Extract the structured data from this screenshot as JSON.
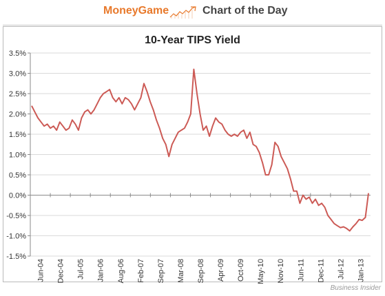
{
  "header": {
    "brand": "MoneyGame",
    "section": "Chart of the Day",
    "accent_color": "#e8792b",
    "sparkline_icon": "rising-line-icon"
  },
  "source": "Business Insider",
  "chart_data": {
    "type": "line",
    "title": "10-Year TIPS Yield",
    "xlabel": "",
    "ylabel": "",
    "x_ticks": [
      "Jun-04",
      "Dec-04",
      "Jul-05",
      "Jan-06",
      "Aug-06",
      "Feb-07",
      "Sep-07",
      "Mar-08",
      "Sep-08",
      "Apr-09",
      "Oct-09",
      "May-10",
      "Nov-10",
      "Jun-11",
      "Dec-11",
      "Jul-12",
      "Jan-13"
    ],
    "y_ticks": [
      "3.5%",
      "3.0%",
      "2.5%",
      "2.0%",
      "1.5%",
      "1.0%",
      "0.5%",
      "0.0%",
      "-0.5%",
      "-1.0%",
      "-1.5%"
    ],
    "ylim": [
      -1.5,
      3.5
    ],
    "grid": "horizontal",
    "line_color": "#cc5a55",
    "x": [
      "2004-06",
      "2004-07",
      "2004-08",
      "2004-09",
      "2004-10",
      "2004-11",
      "2004-12",
      "2005-01",
      "2005-02",
      "2005-03",
      "2005-04",
      "2005-05",
      "2005-06",
      "2005-07",
      "2005-08",
      "2005-09",
      "2005-10",
      "2005-11",
      "2005-12",
      "2006-01",
      "2006-02",
      "2006-03",
      "2006-04",
      "2006-05",
      "2006-06",
      "2006-07",
      "2006-08",
      "2006-09",
      "2006-10",
      "2006-11",
      "2006-12",
      "2007-01",
      "2007-02",
      "2007-03",
      "2007-04",
      "2007-05",
      "2007-06",
      "2007-07",
      "2007-08",
      "2007-09",
      "2007-10",
      "2007-11",
      "2007-12",
      "2008-01",
      "2008-02",
      "2008-03",
      "2008-04",
      "2008-05",
      "2008-06",
      "2008-07",
      "2008-08",
      "2008-09",
      "2008-10",
      "2008-11",
      "2008-12",
      "2009-01",
      "2009-02",
      "2009-03",
      "2009-04",
      "2009-05",
      "2009-06",
      "2009-07",
      "2009-08",
      "2009-09",
      "2009-10",
      "2009-11",
      "2009-12",
      "2010-01",
      "2010-02",
      "2010-03",
      "2010-04",
      "2010-05",
      "2010-06",
      "2010-07",
      "2010-08",
      "2010-09",
      "2010-10",
      "2010-11",
      "2010-12",
      "2011-01",
      "2011-02",
      "2011-03",
      "2011-04",
      "2011-05",
      "2011-06",
      "2011-07",
      "2011-08",
      "2011-09",
      "2011-10",
      "2011-11",
      "2011-12",
      "2012-01",
      "2012-02",
      "2012-03",
      "2012-04",
      "2012-05",
      "2012-06",
      "2012-07",
      "2012-08",
      "2012-09",
      "2012-10",
      "2012-11",
      "2012-12",
      "2013-01",
      "2013-02",
      "2013-03",
      "2013-04",
      "2013-05",
      "2013-06"
    ],
    "values": [
      2.2,
      2.05,
      1.9,
      1.8,
      1.7,
      1.75,
      1.65,
      1.7,
      1.6,
      1.8,
      1.7,
      1.6,
      1.65,
      1.85,
      1.75,
      1.6,
      1.9,
      2.05,
      2.1,
      2.0,
      2.1,
      2.25,
      2.4,
      2.5,
      2.55,
      2.6,
      2.4,
      2.3,
      2.4,
      2.25,
      2.4,
      2.35,
      2.25,
      2.1,
      2.25,
      2.4,
      2.75,
      2.55,
      2.3,
      2.1,
      1.85,
      1.65,
      1.4,
      1.25,
      0.95,
      1.25,
      1.4,
      1.55,
      1.6,
      1.65,
      1.8,
      2.0,
      3.1,
      2.5,
      2.0,
      1.6,
      1.7,
      1.45,
      1.7,
      1.9,
      1.8,
      1.75,
      1.6,
      1.5,
      1.45,
      1.5,
      1.45,
      1.55,
      1.6,
      1.4,
      1.55,
      1.25,
      1.2,
      1.05,
      0.8,
      0.5,
      0.5,
      0.75,
      1.3,
      1.2,
      0.95,
      0.8,
      0.65,
      0.4,
      0.1,
      0.1,
      -0.2,
      0.0,
      -0.1,
      -0.05,
      -0.2,
      -0.1,
      -0.25,
      -0.2,
      -0.3,
      -0.5,
      -0.6,
      -0.7,
      -0.75,
      -0.8,
      -0.78,
      -0.82,
      -0.88,
      -0.78,
      -0.7,
      -0.6,
      -0.62,
      -0.55,
      0.05
    ]
  }
}
